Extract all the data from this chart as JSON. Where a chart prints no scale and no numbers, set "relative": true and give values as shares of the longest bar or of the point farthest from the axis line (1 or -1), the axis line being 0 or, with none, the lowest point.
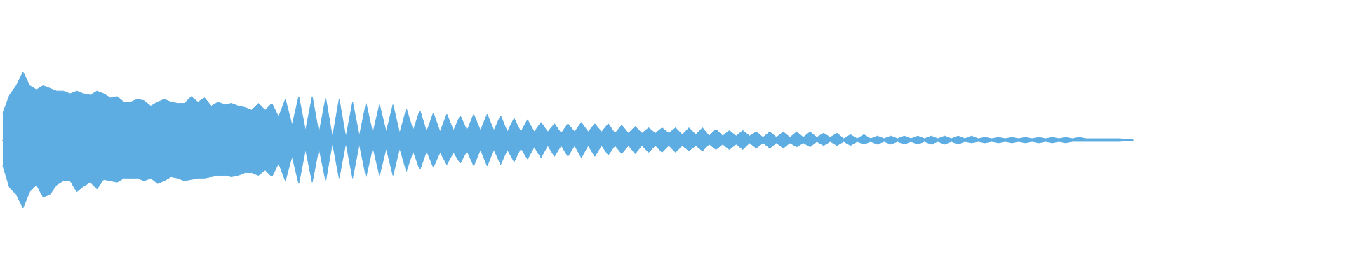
{
  "chart_data": {
    "type": "area",
    "relative": true,
    "categories": [
      null,
      null,
      null,
      null,
      null,
      null,
      null,
      null,
      null,
      null,
      null,
      null,
      null,
      null,
      null,
      null,
      null,
      null,
      null,
      null,
      null,
      null,
      null,
      null,
      null,
      null,
      null,
      null,
      null,
      null,
      null,
      null,
      null,
      null,
      null,
      null,
      null,
      null,
      null,
      null,
      null,
      null,
      null,
      null,
      null,
      null,
      null,
      null,
      null,
      null,
      null,
      null,
      null,
      null,
      null,
      null,
      null,
      null,
      null,
      null,
      null,
      null,
      null,
      null,
      null,
      null,
      null,
      null,
      null,
      null,
      null,
      null,
      null,
      null,
      null,
      null,
      null,
      null,
      null,
      null,
      null,
      null,
      null,
      null,
      null,
      null,
      null,
      null,
      null,
      null,
      null,
      null,
      null,
      null,
      null,
      null,
      null,
      null,
      null,
      null,
      null,
      null,
      null,
      null,
      null,
      null,
      null,
      null,
      null,
      null,
      null,
      null,
      null,
      null,
      null,
      null,
      null,
      null,
      null,
      null,
      null,
      null,
      null,
      null,
      null,
      null,
      null,
      null,
      null,
      null,
      null,
      null,
      null,
      null,
      null,
      null,
      null,
      null,
      null,
      null,
      null,
      null,
      null,
      null,
      null,
      null,
      null,
      null,
      null,
      null,
      null,
      null,
      null,
      null,
      null,
      null,
      null,
      null,
      null,
      null,
      null,
      null,
      null,
      null,
      null,
      null,
      null,
      null,
      null
    ],
    "series": [
      {
        "color": "#5dace2",
        "values": [
          0.4,
          0.66,
          0.8,
          1,
          0.8,
          0.74,
          0.8,
          0.76,
          0.72,
          0.72,
          0.68,
          0.72,
          0.68,
          0.66,
          0.72,
          0.68,
          0.62,
          0.64,
          0.56,
          0.56,
          0.6,
          0.58,
          0.5,
          0.56,
          0.6,
          0.56,
          0.54,
          0.54,
          0.64,
          0.56,
          0.62,
          0.5,
          0.56,
          0.52,
          0.54,
          0.5,
          0.48,
          0.44,
          0.54,
          0.44,
          0.54,
          0.34,
          0.6,
          0.22,
          0.64,
          0.14,
          0.64,
          0.1,
          0.62,
          0.04,
          0.6,
          0.04,
          0.56,
          0.06,
          0.54,
          0.1,
          0.52,
          0.12,
          0.52,
          0.1,
          0.46,
          0.14,
          0.44,
          0.12,
          0.4,
          0.12,
          0.38,
          0.14,
          0.36,
          0.14,
          0.38,
          0.14,
          0.38,
          0.14,
          0.36,
          0.12,
          0.32,
          0.12,
          0.3,
          0.12,
          0.26,
          0.12,
          0.24,
          0.1,
          0.24,
          0.12,
          0.26,
          0.12,
          0.24,
          0.12,
          0.24,
          0.1,
          0.22,
          0.1,
          0.2,
          0.1,
          0.18,
          0.1,
          0.18,
          0.1,
          0.18,
          0.08,
          0.18,
          0.08,
          0.18,
          0.06,
          0.16,
          0.06,
          0.14,
          0.06,
          0.14,
          0.06,
          0.12,
          0.04,
          0.12,
          0.04,
          0.12,
          0.04,
          0.12,
          0.04,
          0.12,
          0.04,
          0.1,
          0.04,
          0.1,
          0.02,
          0.08,
          0.02,
          0.08,
          0.02,
          0.06,
          0.02,
          0.06,
          0.02,
          0.06,
          0.02,
          0.06,
          0.02,
          0.06,
          0.02,
          0.06,
          0.02,
          0.06,
          0.02,
          0.06,
          0.02,
          0.04,
          0.02,
          0.04,
          0.02,
          0.04,
          0.02,
          0.04,
          0.02,
          0.04,
          0.02,
          0.04,
          0.02,
          0.04,
          0.02,
          0.04,
          0.02,
          0.02,
          0.02,
          0.02,
          0.02,
          0.02,
          0.01,
          0.01
        ]
      },
      {
        "color": "#5dade2",
        "values": [
          -0.38,
          -0.7,
          -0.8,
          -1,
          -0.76,
          -0.66,
          -0.84,
          -0.8,
          -0.66,
          -0.6,
          -0.6,
          -0.76,
          -0.68,
          -0.62,
          -0.72,
          -0.58,
          -0.6,
          -0.62,
          -0.56,
          -0.56,
          -0.56,
          -0.6,
          -0.56,
          -0.64,
          -0.6,
          -0.54,
          -0.56,
          -0.6,
          -0.58,
          -0.56,
          -0.56,
          -0.54,
          -0.52,
          -0.52,
          -0.54,
          -0.52,
          -0.48,
          -0.48,
          -0.52,
          -0.44,
          -0.54,
          -0.34,
          -0.6,
          -0.24,
          -0.64,
          -0.14,
          -0.62,
          -0.12,
          -0.6,
          -0.04,
          -0.56,
          -0.04,
          -0.56,
          -0.06,
          -0.54,
          -0.1,
          -0.52,
          -0.12,
          -0.52,
          -0.12,
          -0.46,
          -0.16,
          -0.44,
          -0.16,
          -0.4,
          -0.18,
          -0.36,
          -0.18,
          -0.34,
          -0.16,
          -0.38,
          -0.14,
          -0.38,
          -0.14,
          -0.36,
          -0.14,
          -0.32,
          -0.12,
          -0.28,
          -0.1,
          -0.26,
          -0.08,
          -0.24,
          -0.08,
          -0.24,
          -0.08,
          -0.26,
          -0.08,
          -0.24,
          -0.08,
          -0.22,
          -0.08,
          -0.2,
          -0.08,
          -0.2,
          -0.08,
          -0.18,
          -0.08,
          -0.18,
          -0.08,
          -0.18,
          -0.08,
          -0.16,
          -0.08,
          -0.16,
          -0.06,
          -0.14,
          -0.06,
          -0.14,
          -0.06,
          -0.14,
          -0.04,
          -0.12,
          -0.04,
          -0.12,
          -0.04,
          -0.12,
          -0.04,
          -0.1,
          -0.04,
          -0.1,
          -0.02,
          -0.08,
          -0.02,
          -0.08,
          -0.02,
          -0.08,
          -0.02,
          -0.06,
          -0.02,
          -0.06,
          -0.02,
          -0.06,
          -0.02,
          -0.06,
          -0.02,
          -0.06,
          -0.02,
          -0.06,
          -0.02,
          -0.06,
          -0.02,
          -0.06,
          -0.02,
          -0.04,
          -0.02,
          -0.04,
          -0.02,
          -0.04,
          -0.02,
          -0.04,
          -0.02,
          -0.04,
          -0.02,
          -0.04,
          -0.02,
          -0.04,
          -0.02,
          -0.04,
          -0.02,
          -0.02,
          -0.02,
          -0.02,
          -0.02,
          -0.02,
          -0.02,
          -0.02,
          -0.01,
          -0.01
        ]
      }
    ]
  }
}
